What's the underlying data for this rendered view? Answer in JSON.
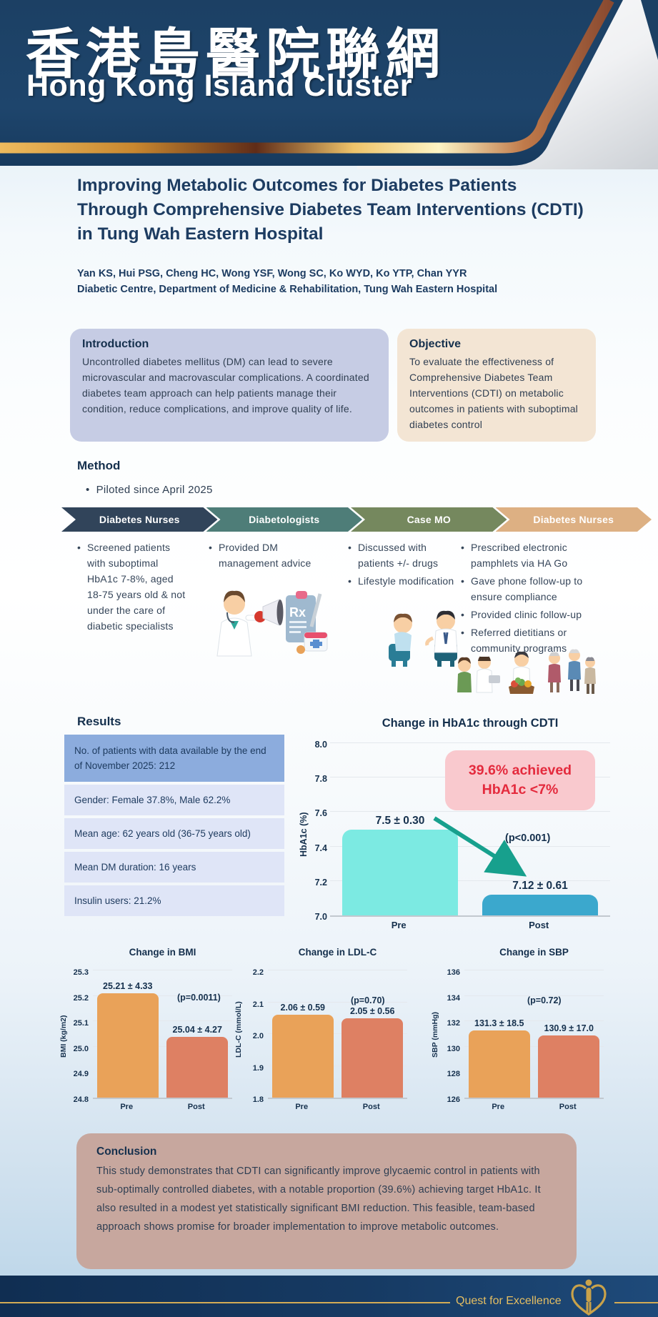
{
  "header": {
    "org_name_zh": "香港島醫院聯網",
    "org_name_en": "Hong Kong Island Cluster"
  },
  "title": {
    "line1": "Improving Metabolic Outcomes for Diabetes Patients",
    "line2": "Through Comprehensive Diabetes Team Interventions (CDTI)",
    "line3": "in Tung Wah Eastern Hospital",
    "authors": "Yan KS, Hui PSG, Cheng HC, Wong YSF, Wong SC, Ko WYD, Ko YTP, Chan YYR",
    "affiliation": "Diabetic Centre, Department of Medicine & Rehabilitation, Tung Wah Eastern Hospital"
  },
  "introduction": {
    "heading": "Introduction",
    "body": "Uncontrolled diabetes mellitus (DM) can lead to severe microvascular and macrovascular complications. A coordinated diabetes team approach can help patients manage their condition, reduce complications, and improve quality of life."
  },
  "objective": {
    "heading": "Objective",
    "body": "To evaluate the effectiveness of Comprehensive Diabetes Team Interventions (CDTI) on metabolic outcomes in patients with suboptimal diabetes control"
  },
  "method": {
    "heading": "Method",
    "pilot_note": "Piloted since April 2025",
    "steps": [
      {
        "label": "Diabetes Nurses",
        "color": "#31445a",
        "bullets": [
          "Screened patients with suboptimal HbA1c 7-8%, aged 18-75 years old & not under the care of diabetic specialists"
        ]
      },
      {
        "label": "Diabetologists",
        "color": "#4e7d78",
        "bullets": [
          "Provided DM management advice"
        ]
      },
      {
        "label": "Case MO",
        "color": "#75885e",
        "bullets": [
          "Discussed with patients +/- drugs",
          "Lifestyle modification"
        ]
      },
      {
        "label": "Diabetes Nurses",
        "color": "#ddb083",
        "bullets": [
          "Prescribed electronic pamphlets via HA Go",
          "Gave phone follow-up to ensure compliance",
          "Provided clinic follow-up",
          "Referred dietitians or community programs"
        ]
      }
    ],
    "illustrations": [
      "doctor-with-megaphone",
      "prescription-clipboard",
      "doctor-patient-consultation",
      "nurse-dietitian-community-groups"
    ]
  },
  "results": {
    "heading": "Results",
    "table": {
      "header_row": "No. of patients with data available by the end of November 2025: 212",
      "rows": [
        "Gender: Female 37.8%, Male 62.2%",
        "Mean age: 62 years old (36-75 years old)",
        "Mean DM duration: 16 years",
        "Insulin users: 21.2%"
      ]
    },
    "highlight": {
      "line1": "39.6% achieved",
      "line2": "HbA1c <7%"
    }
  },
  "chart_data": [
    {
      "type": "bar",
      "title": "Change in HbA1c through CDTI",
      "ylabel": "HbA1c (%)",
      "categories": [
        "Pre",
        "Post"
      ],
      "values": [
        7.5,
        7.12
      ],
      "bar_labels": [
        "7.5 ± 0.30",
        "7.12 ± 0.61"
      ],
      "p_value": "(p<0.001)",
      "annotation": "39.6% achieved HbA1c <7%",
      "ylim": [
        7.0,
        8.0
      ],
      "yticks": [
        "8.0",
        "7.8",
        "7.6",
        "7.4",
        "7.2",
        "7.0"
      ],
      "bar_colors": [
        "#7ceae2",
        "#3ba8cd"
      ],
      "grid": true,
      "legend": "none"
    },
    {
      "type": "bar",
      "title": "Change in BMI",
      "ylabel": "BMI (kg/m2)",
      "categories": [
        "Pre",
        "Post"
      ],
      "values": [
        25.21,
        25.04
      ],
      "bar_labels": [
        "25.21 ± 4.33",
        "25.04 ± 4.27"
      ],
      "p_value": "(p=0.0011)",
      "ylim": [
        24.8,
        25.3
      ],
      "yticks": [
        "25.3",
        "25.2",
        "25.1",
        "25.0",
        "24.9",
        "24.8"
      ],
      "bar_colors": [
        "#e9a259",
        "#de8063"
      ],
      "grid": true,
      "legend": "none"
    },
    {
      "type": "bar",
      "title": "Change in LDL-C",
      "ylabel": "LDL-C (mmol/L)",
      "categories": [
        "Pre",
        "Post"
      ],
      "values": [
        2.06,
        2.05
      ],
      "bar_labels": [
        "2.06 ± 0.59",
        "2.05 ± 0.56"
      ],
      "p_value": "(p=0.70)",
      "ylim": [
        1.8,
        2.2
      ],
      "yticks": [
        "2.2",
        "2.1",
        "2.0",
        "1.9",
        "1.8"
      ],
      "bar_colors": [
        "#e9a259",
        "#de8063"
      ],
      "grid": true,
      "legend": "none"
    },
    {
      "type": "bar",
      "title": "Change in SBP",
      "ylabel": "SBP (mmHg)",
      "categories": [
        "Pre",
        "Post"
      ],
      "values": [
        131.3,
        130.9
      ],
      "bar_labels": [
        "131.3 ± 18.5",
        "130.9 ± 17.0"
      ],
      "p_value": "(p=0.72)",
      "ylim": [
        126,
        136
      ],
      "yticks": [
        "136",
        "134",
        "132",
        "130",
        "128",
        "126"
      ],
      "bar_colors": [
        "#e9a259",
        "#de8063"
      ],
      "grid": true,
      "legend": "none"
    }
  ],
  "conclusion": {
    "heading": "Conclusion",
    "body": "This study demonstrates that CDTI can significantly improve glycaemic control in patients with sub-optimally controlled diabetes, with a notable proportion (39.6%) achieving target HbA1c. It also resulted in a modest yet statistically significant BMI reduction. This feasible, team-based approach shows promise for broader implementation to improve metabolic outcomes.",
    "background_color": "#c7a79e"
  },
  "footer": {
    "motto": "Quest for Excellence",
    "logo": "hospital-authority-heart-person",
    "gold_color": "#d3ab55",
    "navy_color": "#14365e"
  }
}
